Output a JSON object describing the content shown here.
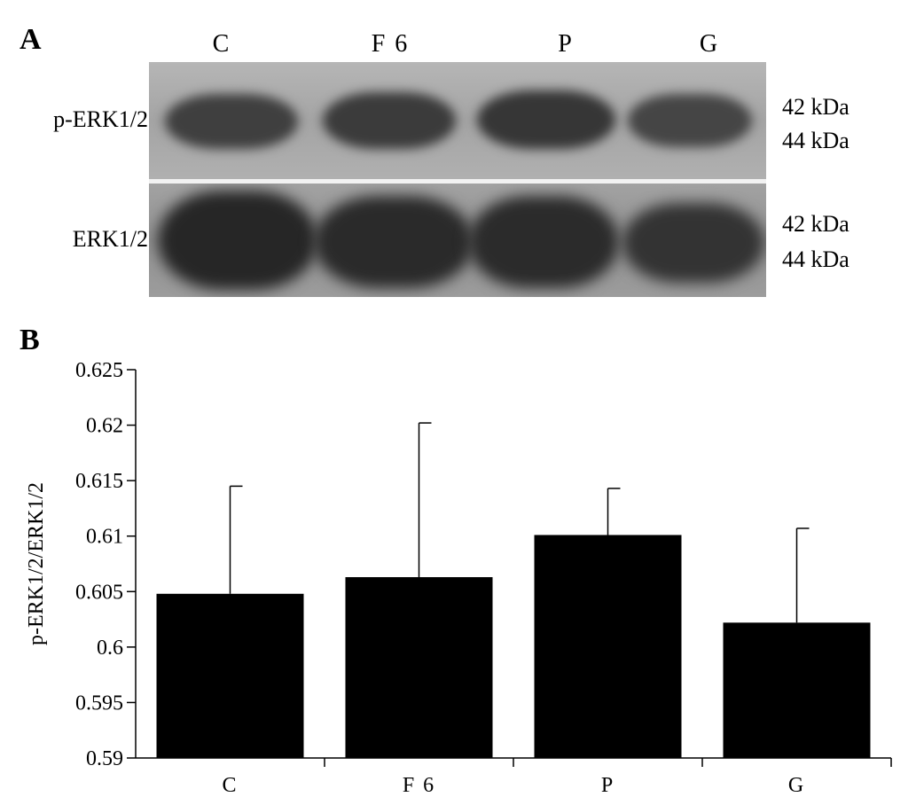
{
  "panel_a": {
    "label": "A",
    "lanes": [
      "C",
      "F 6",
      "P",
      "G"
    ],
    "rows": [
      {
        "label": "p-ERK1/2",
        "kda": [
          "42 kDa",
          "44 kDa"
        ]
      },
      {
        "label": "ERK1/2",
        "kda": [
          "42 kDa",
          "44 kDa"
        ]
      }
    ]
  },
  "panel_b": {
    "label": "B"
  },
  "chart_data": {
    "type": "bar",
    "title": "",
    "xlabel": "",
    "ylabel": "p-ERK1/2/ERK1/2",
    "categories": [
      "C",
      "F 6",
      "P",
      "G"
    ],
    "values": [
      0.6048,
      0.6063,
      0.6101,
      0.6022
    ],
    "errors": [
      0.0097,
      0.0139,
      0.0042,
      0.0085
    ],
    "ylim": [
      0.59,
      0.625
    ],
    "yticks": [
      0.59,
      0.595,
      0.6,
      0.605,
      0.61,
      0.615,
      0.62,
      0.625
    ],
    "ytick_labels": [
      "0.59",
      "0.595",
      "0.6",
      "0.605",
      "0.61",
      "0.615",
      "0.62",
      "0.625"
    ],
    "grid": false,
    "bar_color": "#000000"
  }
}
